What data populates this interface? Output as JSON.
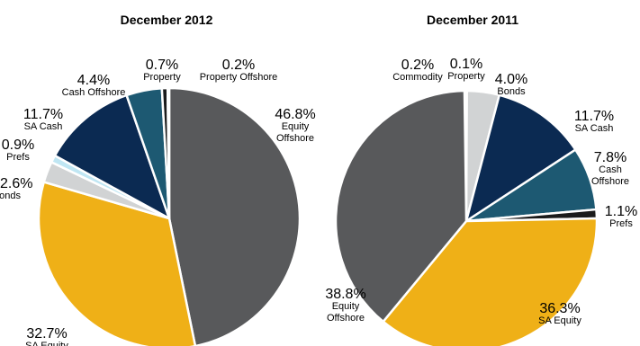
{
  "chart_data": [
    {
      "type": "pie",
      "title": "December 2012",
      "slices": [
        {
          "label": "Equity Offshore",
          "label_lines": [
            "Equity",
            "Offshore"
          ],
          "value": 46.8,
          "value_text": "46.8%",
          "color": "#58595b"
        },
        {
          "label": "SA Equity",
          "label_lines": [
            "SA Equity"
          ],
          "value": 32.7,
          "value_text": "32.7%",
          "color": "#efb017"
        },
        {
          "label": "Bonds",
          "label_lines": [
            "Bonds"
          ],
          "value": 2.6,
          "value_text": "2.6%",
          "color": "#d1d3d4"
        },
        {
          "label": "Prefs",
          "label_lines": [
            "Prefs"
          ],
          "value": 0.9,
          "value_text": "0.9%",
          "color": "#bfe6f3"
        },
        {
          "label": "SA Cash",
          "label_lines": [
            "SA Cash"
          ],
          "value": 11.7,
          "value_text": "11.7%",
          "color": "#0b2a52"
        },
        {
          "label": "Cash Offshore",
          "label_lines": [
            "Cash Offshore"
          ],
          "value": 4.4,
          "value_text": "4.4%",
          "color": "#1d5972"
        },
        {
          "label": "Property",
          "label_lines": [
            "Property"
          ],
          "value": 0.7,
          "value_text": "0.7%",
          "color": "#1b1b1b"
        },
        {
          "label": "Property Offshore",
          "label_lines": [
            "Property Offshore"
          ],
          "value": 0.2,
          "value_text": "0.2%",
          "color": "#6f7072"
        }
      ]
    },
    {
      "type": "pie",
      "title": "December 2011",
      "slices": [
        {
          "label": "Commodity",
          "label_lines": [
            "Commodity"
          ],
          "value": 0.2,
          "value_text": "0.2%",
          "color": "#b9d7a9"
        },
        {
          "label": "Property",
          "label_lines": [
            "Property"
          ],
          "value": 0.1,
          "value_text": "0.1%",
          "color": "#8fbf8f"
        },
        {
          "label": "Bonds",
          "label_lines": [
            "Bonds"
          ],
          "value": 4.0,
          "value_text": "4.0%",
          "color": "#d1d3d4"
        },
        {
          "label": "SA Cash",
          "label_lines": [
            "SA Cash"
          ],
          "value": 11.7,
          "value_text": "11.7%",
          "color": "#0b2a52"
        },
        {
          "label": "Cash Offshore",
          "label_lines": [
            "Cash",
            "Offshore"
          ],
          "value": 7.8,
          "value_text": "7.8%",
          "color": "#1d5972"
        },
        {
          "label": "Prefs",
          "label_lines": [
            "Prefs"
          ],
          "value": 1.1,
          "value_text": "1.1%",
          "color": "#1b1b1b"
        },
        {
          "label": "SA Equity",
          "label_lines": [
            "SA Equity"
          ],
          "value": 36.3,
          "value_text": "36.3%",
          "color": "#efb017"
        },
        {
          "label": "Equity Offshore",
          "label_lines": [
            "Equity",
            "Offshore"
          ],
          "value": 38.8,
          "value_text": "38.8%",
          "color": "#58595b"
        }
      ]
    }
  ]
}
